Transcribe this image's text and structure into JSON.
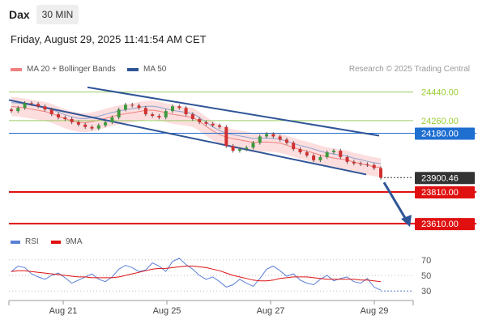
{
  "header": {
    "symbol": "Dax",
    "timeframe": "30 MIN",
    "datetime": "Friday, August 29, 2025 11:41:54 AM CET"
  },
  "legend": {
    "ma20": {
      "label": "MA 20 + Bollinger Bands",
      "color": "#f08080"
    },
    "ma50": {
      "label": "MA 50",
      "color": "#2f5597"
    }
  },
  "copyright": "Research © 2025 Trading Central",
  "rsi_legend": {
    "rsi": {
      "label": "RSI",
      "color": "#5b7fd6"
    },
    "ma9": {
      "label": "9MA",
      "color": "#e01010"
    }
  },
  "chart_data": {
    "type": "candlestick",
    "ylim": [
      23580,
      24520
    ],
    "x_ticks": [
      "Aug 21",
      "Aug 25",
      "Aug 27",
      "Aug 29"
    ],
    "levels": [
      {
        "value": 24440.0,
        "label": "24440.00",
        "style": "resistance-thin",
        "color": "#9ccc65"
      },
      {
        "value": 24260.0,
        "label": "24260.00",
        "style": "resistance-thin",
        "color": "#9ccc65"
      },
      {
        "value": 24180.0,
        "label": "24180.00",
        "style": "pivot",
        "color": "#1f6fd1"
      },
      {
        "value": 23900.46,
        "label": "23900.46",
        "style": "last-price",
        "color": "#333333"
      },
      {
        "value": 23810.0,
        "label": "23810.00",
        "style": "support",
        "color": "#e01010"
      },
      {
        "value": 23610.0,
        "label": "23610.00",
        "style": "support",
        "color": "#e01010"
      }
    ],
    "channel": {
      "upper": [
        [
          24470,
          24460
        ],
        [
          24165,
          24170
        ]
      ],
      "lower": [
        [
          24390,
          24380
        ],
        [
          23920,
          23915
        ]
      ]
    },
    "close": [
      24320,
      24340,
      24370,
      24365,
      24350,
      24330,
      24300,
      24280,
      24270,
      24250,
      24235,
      24220,
      24210,
      24230,
      24250,
      24280,
      24330,
      24360,
      24355,
      24340,
      24300,
      24290,
      24280,
      24320,
      24350,
      24340,
      24300,
      24270,
      24250,
      24240,
      24230,
      24220,
      24100,
      24070,
      24080,
      24090,
      24120,
      24160,
      24175,
      24160,
      24140,
      24120,
      24080,
      24060,
      24040,
      24010,
      24030,
      24060,
      24070,
      24030,
      24000,
      23990,
      23985,
      23980,
      23960,
      23900
    ],
    "rsi": {
      "levels": [
        70,
        50,
        30
      ],
      "values": [
        55,
        62,
        60,
        52,
        48,
        45,
        50,
        53,
        47,
        40,
        44,
        48,
        52,
        45,
        42,
        48,
        58,
        63,
        60,
        55,
        57,
        66,
        62,
        55,
        68,
        72,
        64,
        58,
        50,
        45,
        48,
        42,
        35,
        38,
        45,
        40,
        36,
        46,
        58,
        62,
        56,
        49,
        52,
        44,
        40,
        38,
        45,
        50,
        43,
        46,
        48,
        42,
        40,
        46,
        35,
        31
      ],
      "ma9": [
        55,
        56,
        56,
        55,
        54,
        53,
        52,
        51,
        50,
        49,
        48,
        48,
        47,
        47,
        47,
        47,
        48,
        50,
        52,
        54,
        56,
        58,
        59,
        59,
        60,
        61,
        62,
        62,
        61,
        60,
        58,
        56,
        53,
        50,
        48,
        46,
        44,
        43,
        43,
        44,
        46,
        47,
        48,
        48,
        48,
        47,
        46,
        45,
        45,
        45,
        45,
        45,
        44,
        44,
        43,
        42
      ]
    }
  }
}
